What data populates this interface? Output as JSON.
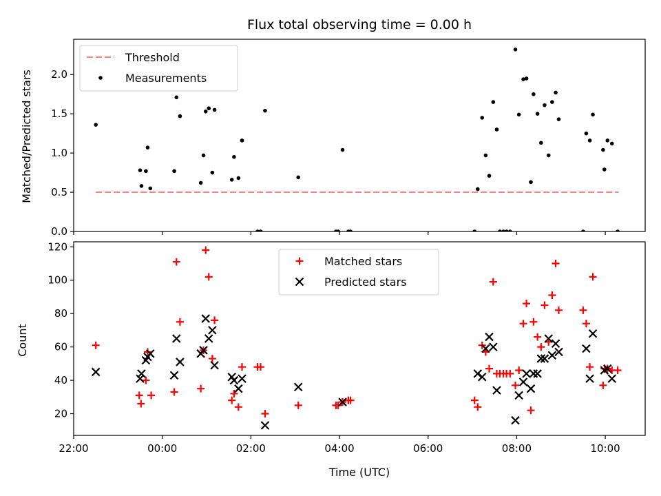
{
  "chart_data": [
    {
      "type": "scatter",
      "title": "Flux total observing time = 0.00 h",
      "xlabel": "",
      "ylabel": "Matched/Predicted stars",
      "xlim": [
        -2.0,
        10.9
      ],
      "ylim": [
        0.0,
        2.45
      ],
      "yticks": [
        0.0,
        0.5,
        1.0,
        1.5,
        2.0
      ],
      "ytick_labels": [
        "0.0",
        "0.5",
        "1.0",
        "1.5",
        "2.0"
      ],
      "xticks": [
        -2,
        0,
        2,
        4,
        6,
        8,
        10
      ],
      "legend": {
        "position": "top-left"
      },
      "series": [
        {
          "name": "Threshold",
          "kind": "line",
          "style": "dashed",
          "color": "#ff7f7f",
          "points": [
            [
              -1.5,
              0.5
            ],
            [
              10.3,
              0.5
            ]
          ]
        },
        {
          "name": "Measurements",
          "kind": "scatter",
          "marker": "dot",
          "color": "#000000",
          "points": [
            [
              -1.5,
              1.36
            ],
            [
              -0.5,
              0.78
            ],
            [
              -0.47,
              0.58
            ],
            [
              -0.37,
              0.77
            ],
            [
              -0.33,
              1.07
            ],
            [
              -0.27,
              0.55
            ],
            [
              0.27,
              0.77
            ],
            [
              0.32,
              1.71
            ],
            [
              0.4,
              1.47
            ],
            [
              0.87,
              0.62
            ],
            [
              0.93,
              0.97
            ],
            [
              0.98,
              1.53
            ],
            [
              1.05,
              1.57
            ],
            [
              1.13,
              0.75
            ],
            [
              1.18,
              1.55
            ],
            [
              1.57,
              0.66
            ],
            [
              1.62,
              0.95
            ],
            [
              1.72,
              0.68
            ],
            [
              1.8,
              1.16
            ],
            [
              2.15,
              0.0
            ],
            [
              2.22,
              0.0
            ],
            [
              2.32,
              1.54
            ],
            [
              3.07,
              0.69
            ],
            [
              3.92,
              0.0
            ],
            [
              3.97,
              0.0
            ],
            [
              4.07,
              1.04
            ],
            [
              4.2,
              0.0
            ],
            [
              4.25,
              0.0
            ],
            [
              7.05,
              0.0
            ],
            [
              7.12,
              0.54
            ],
            [
              7.22,
              1.45
            ],
            [
              7.3,
              0.97
            ],
            [
              7.38,
              0.71
            ],
            [
              7.47,
              1.65
            ],
            [
              7.55,
              1.3
            ],
            [
              7.62,
              0.0
            ],
            [
              7.7,
              0.0
            ],
            [
              7.77,
              0.0
            ],
            [
              7.85,
              0.0
            ],
            [
              7.97,
              2.32
            ],
            [
              8.05,
              1.49
            ],
            [
              8.15,
              1.94
            ],
            [
              8.22,
              1.95
            ],
            [
              8.32,
              0.63
            ],
            [
              8.38,
              1.75
            ],
            [
              8.47,
              1.5
            ],
            [
              8.55,
              1.13
            ],
            [
              8.63,
              1.61
            ],
            [
              8.72,
              0.97
            ],
            [
              8.8,
              1.65
            ],
            [
              8.88,
              1.77
            ],
            [
              8.95,
              1.43
            ],
            [
              9.5,
              0.0
            ],
            [
              9.57,
              1.25
            ],
            [
              9.65,
              1.16
            ],
            [
              9.72,
              1.49
            ],
            [
              9.95,
              1.04
            ],
            [
              9.98,
              0.79
            ],
            [
              10.05,
              1.16
            ],
            [
              10.15,
              1.12
            ],
            [
              10.28,
              0.0
            ]
          ]
        }
      ]
    },
    {
      "type": "scatter",
      "title": "",
      "xlabel": "Time (UTC)",
      "ylabel": "Count",
      "xlim": [
        -2.0,
        10.9
      ],
      "ylim": [
        7.0,
        123.0
      ],
      "yticks": [
        20,
        40,
        60,
        80,
        100,
        120
      ],
      "ytick_labels": [
        "20",
        "40",
        "60",
        "80",
        "100",
        "120"
      ],
      "xticks": [
        -2,
        0,
        2,
        4,
        6,
        8,
        10
      ],
      "xtick_labels": [
        "22:00",
        "00:00",
        "02:00",
        "04:00",
        "06:00",
        "08:00",
        "10:00"
      ],
      "legend": {
        "position": "top-center"
      },
      "series": [
        {
          "name": "Matched stars",
          "kind": "scatter",
          "marker": "plus",
          "color": "#ff0000",
          "points": [
            [
              -1.5,
              61
            ],
            [
              -0.52,
              31
            ],
            [
              -0.48,
              26
            ],
            [
              -0.37,
              40
            ],
            [
              -0.33,
              57
            ],
            [
              -0.25,
              31
            ],
            [
              0.27,
              33
            ],
            [
              0.32,
              111
            ],
            [
              0.4,
              75
            ],
            [
              0.87,
              35
            ],
            [
              0.93,
              58
            ],
            [
              0.98,
              118
            ],
            [
              1.05,
              102
            ],
            [
              1.13,
              53
            ],
            [
              1.18,
              76
            ],
            [
              1.57,
              28
            ],
            [
              1.62,
              32
            ],
            [
              1.72,
              24
            ],
            [
              1.8,
              48
            ],
            [
              2.15,
              48
            ],
            [
              2.22,
              48
            ],
            [
              2.32,
              20
            ],
            [
              3.07,
              25
            ],
            [
              3.92,
              25
            ],
            [
              3.97,
              25
            ],
            [
              4.07,
              27
            ],
            [
              4.2,
              28
            ],
            [
              4.25,
              28
            ],
            [
              7.05,
              28
            ],
            [
              7.12,
              24
            ],
            [
              7.22,
              61
            ],
            [
              7.3,
              57
            ],
            [
              7.38,
              47
            ],
            [
              7.47,
              99
            ],
            [
              7.55,
              44
            ],
            [
              7.62,
              44
            ],
            [
              7.7,
              44
            ],
            [
              7.77,
              44
            ],
            [
              7.85,
              44
            ],
            [
              7.97,
              37
            ],
            [
              8.05,
              46
            ],
            [
              8.15,
              74
            ],
            [
              8.22,
              86
            ],
            [
              8.32,
              22
            ],
            [
              8.38,
              75
            ],
            [
              8.47,
              66
            ],
            [
              8.55,
              60
            ],
            [
              8.63,
              85
            ],
            [
              8.72,
              63
            ],
            [
              8.8,
              91
            ],
            [
              8.88,
              110
            ],
            [
              8.95,
              82
            ],
            [
              9.5,
              82
            ],
            [
              9.57,
              74
            ],
            [
              9.65,
              48
            ],
            [
              9.72,
              102
            ],
            [
              9.95,
              37
            ],
            [
              9.98,
              47
            ],
            [
              10.05,
              47
            ],
            [
              10.15,
              46
            ],
            [
              10.28,
              46
            ]
          ]
        },
        {
          "name": "Predicted stars",
          "kind": "scatter",
          "marker": "x",
          "color": "#000000",
          "points": [
            [
              -1.5,
              45
            ],
            [
              -0.5,
              41
            ],
            [
              -0.47,
              44
            ],
            [
              -0.37,
              52
            ],
            [
              -0.33,
              54
            ],
            [
              -0.27,
              56
            ],
            [
              0.27,
              43
            ],
            [
              0.32,
              65
            ],
            [
              0.4,
              51
            ],
            [
              0.87,
              56
            ],
            [
              0.93,
              58
            ],
            [
              0.98,
              77
            ],
            [
              1.05,
              65
            ],
            [
              1.13,
              70
            ],
            [
              1.18,
              49
            ],
            [
              1.57,
              42
            ],
            [
              1.62,
              40
            ],
            [
              1.72,
              35
            ],
            [
              1.8,
              41
            ],
            [
              2.32,
              13
            ],
            [
              3.07,
              36
            ],
            [
              4.07,
              27
            ],
            [
              7.12,
              44
            ],
            [
              7.22,
              42
            ],
            [
              7.3,
              59
            ],
            [
              7.38,
              66
            ],
            [
              7.47,
              60
            ],
            [
              7.55,
              34
            ],
            [
              7.97,
              16
            ],
            [
              8.05,
              31
            ],
            [
              8.15,
              39
            ],
            [
              8.22,
              44
            ],
            [
              8.32,
              35
            ],
            [
              8.38,
              44
            ],
            [
              8.47,
              44
            ],
            [
              8.55,
              53
            ],
            [
              8.63,
              53
            ],
            [
              8.72,
              65
            ],
            [
              8.8,
              55
            ],
            [
              8.88,
              62
            ],
            [
              8.95,
              57
            ],
            [
              9.57,
              59
            ],
            [
              9.65,
              41
            ],
            [
              9.72,
              68
            ],
            [
              9.98,
              46
            ],
            [
              10.05,
              47
            ],
            [
              10.15,
              41
            ]
          ]
        }
      ]
    }
  ]
}
